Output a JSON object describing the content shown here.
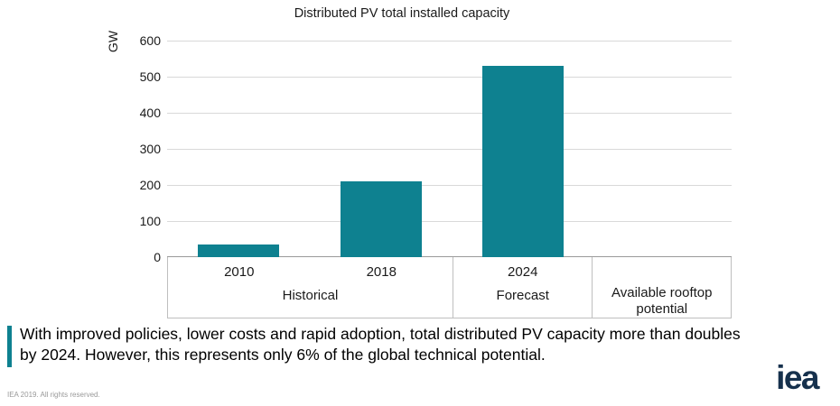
{
  "chart_data": {
    "type": "bar",
    "title": "Distributed PV total installed capacity",
    "ylabel": "GW",
    "ylim": [
      0,
      600
    ],
    "yticks": [
      0,
      100,
      200,
      300,
      400,
      500,
      600
    ],
    "grid": true,
    "legend": "none",
    "categories": [
      "2010",
      "2018",
      "2024",
      ""
    ],
    "values": [
      35,
      210,
      530,
      null
    ],
    "groups": [
      {
        "label": "Historical",
        "categories": [
          "2010",
          "2018"
        ]
      },
      {
        "label": "Forecast",
        "categories": [
          "2024"
        ]
      },
      {
        "label": "Available rooftop potential",
        "categories": []
      }
    ],
    "bar_color": "#0e8190"
  },
  "callout": {
    "text": "With improved policies, lower costs and rapid adoption, total distributed PV capacity more than doubles by 2024. However, this represents only 6% of the global technical potential."
  },
  "footer": {
    "copyright": "IEA 2019. All rights reserved.",
    "logo_text": "iea"
  },
  "colors": {
    "accent_teal": "#0e8190",
    "logo_navy": "#16314d",
    "gridline": "#d9d9d9",
    "axis_line": "#9a9a9a",
    "table_border": "#bfbfbf"
  }
}
